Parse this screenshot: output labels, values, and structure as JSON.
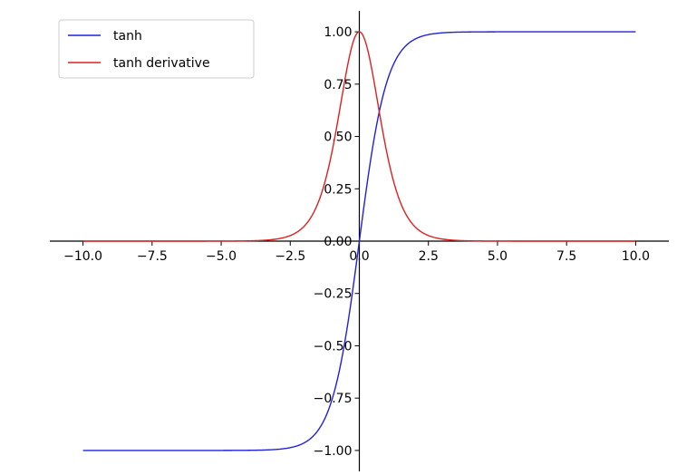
{
  "chart_data": {
    "type": "line",
    "xlim": [
      -11.2,
      11.2
    ],
    "ylim": [
      -1.1,
      1.1
    ],
    "x_ticks": [
      -10.0,
      -7.5,
      -5.0,
      -2.5,
      0.0,
      2.5,
      5.0,
      7.5,
      10.0
    ],
    "x_tick_labels": [
      "−10.0",
      "−7.5",
      "−5.0",
      "−2.5",
      "0.0",
      "2.5",
      "5.0",
      "7.5",
      "10.0"
    ],
    "y_ticks": [
      -1.0,
      -0.75,
      -0.5,
      -0.25,
      0.0,
      0.25,
      0.5,
      0.75,
      1.0
    ],
    "y_tick_labels": [
      "−1.00",
      "−0.75",
      "−0.50",
      "−0.25",
      "0.00",
      "0.25",
      "0.50",
      "0.75",
      "1.00"
    ],
    "grid": false,
    "spines": "centered",
    "legend_position": "top-left",
    "series": [
      {
        "name": "tanh",
        "color": "#2020dd",
        "x": [
          -10.0,
          -5.0,
          -3.0,
          -2.5,
          -2.0,
          -1.5,
          -1.0,
          -0.5,
          0.0,
          0.5,
          1.0,
          1.5,
          2.0,
          2.5,
          3.0,
          5.0,
          10.0
        ],
        "y": [
          -1.0,
          -0.9999,
          -0.9951,
          -0.9866,
          -0.964,
          -0.9051,
          -0.7616,
          -0.4621,
          0.0,
          0.4621,
          0.7616,
          0.9051,
          0.964,
          0.9866,
          0.9951,
          0.9999,
          1.0
        ]
      },
      {
        "name": "tanh derivative",
        "color": "#dd2020",
        "x": [
          -10.0,
          -5.0,
          -3.0,
          -2.5,
          -2.0,
          -1.5,
          -1.0,
          -0.5,
          0.0,
          0.5,
          1.0,
          1.5,
          2.0,
          2.5,
          3.0,
          5.0,
          10.0
        ],
        "y": [
          0.0,
          0.0002,
          0.0099,
          0.0266,
          0.0707,
          0.1807,
          0.42,
          0.7864,
          1.0,
          0.7864,
          0.42,
          0.1807,
          0.0707,
          0.0266,
          0.0099,
          0.0002,
          0.0
        ]
      }
    ]
  }
}
